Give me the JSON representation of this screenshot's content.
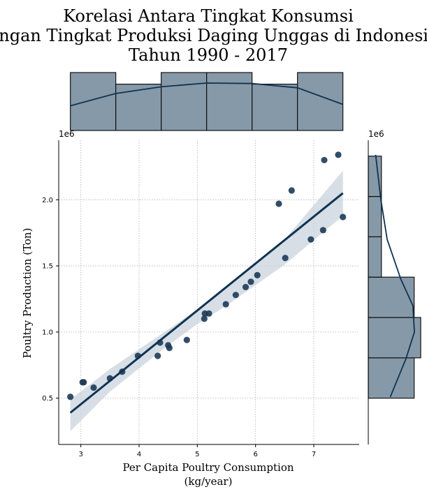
{
  "chart_data": {
    "type": "scatter",
    "title_lines": [
      "Korelasi Antara Tingkat Konsumsi",
      "dengan Tingkat Produksi Daging Unggas di Indonesia",
      "Tahun 1990 - 2017"
    ],
    "xlabel_lines": [
      "Per Capita Poultry Consumption",
      "(kg/year)"
    ],
    "ylabel": "Poultry Production (Ton)",
    "y_offset_text": "1e6",
    "marginal_offset_text": "1e6",
    "x_ticks": [
      3,
      4,
      5,
      6,
      7
    ],
    "x_tick_labels": [
      "3",
      "4",
      "5",
      "6",
      "7"
    ],
    "y_ticks": [
      0.5,
      1.0,
      1.5,
      2.0
    ],
    "y_tick_labels": [
      "0.5",
      "1.0",
      "1.5",
      "2.0"
    ],
    "xlim": [
      2.62,
      7.78
    ],
    "ylim": [
      0.15,
      2.45
    ],
    "grid": true,
    "colors": {
      "point": "#1d3a57",
      "regression_line": "#0f3352",
      "confidence_band": "#c9d3de",
      "histogram_fill": "#8699a8",
      "histogram_edge": "#111111",
      "kde": "#0f3352"
    },
    "points": [
      {
        "x": 2.82,
        "y": 0.51
      },
      {
        "x": 3.03,
        "y": 0.62
      },
      {
        "x": 3.05,
        "y": 0.62
      },
      {
        "x": 3.22,
        "y": 0.58
      },
      {
        "x": 3.5,
        "y": 0.65
      },
      {
        "x": 3.71,
        "y": 0.7
      },
      {
        "x": 3.98,
        "y": 0.82
      },
      {
        "x": 4.32,
        "y": 0.82
      },
      {
        "x": 4.36,
        "y": 0.92
      },
      {
        "x": 4.5,
        "y": 0.9
      },
      {
        "x": 4.52,
        "y": 0.88
      },
      {
        "x": 4.82,
        "y": 0.94
      },
      {
        "x": 5.12,
        "y": 1.1
      },
      {
        "x": 5.13,
        "y": 1.14
      },
      {
        "x": 5.2,
        "y": 1.14
      },
      {
        "x": 5.49,
        "y": 1.21
      },
      {
        "x": 5.66,
        "y": 1.28
      },
      {
        "x": 5.83,
        "y": 1.34
      },
      {
        "x": 5.92,
        "y": 1.38
      },
      {
        "x": 6.03,
        "y": 1.43
      },
      {
        "x": 6.4,
        "y": 1.97
      },
      {
        "x": 6.51,
        "y": 1.56
      },
      {
        "x": 6.62,
        "y": 2.07
      },
      {
        "x": 6.95,
        "y": 1.7
      },
      {
        "x": 7.16,
        "y": 1.77
      },
      {
        "x": 7.18,
        "y": 2.3
      },
      {
        "x": 7.42,
        "y": 2.34
      },
      {
        "x": 7.5,
        "y": 1.87
      }
    ],
    "regression": {
      "x1": 2.82,
      "y1": 0.39,
      "x2": 7.5,
      "y2": 2.05
    },
    "confidence_band": {
      "x": [
        2.82,
        3.5,
        4.5,
        5.0,
        5.5,
        6.5,
        7.5
      ],
      "upper": [
        0.49,
        0.72,
        1.02,
        1.17,
        1.33,
        1.7,
        2.22
      ],
      "lower": [
        0.25,
        0.55,
        0.9,
        1.06,
        1.2,
        1.51,
        1.88
      ]
    },
    "x_histogram": {
      "bin_edges": [
        2.82,
        3.6,
        4.38,
        5.16,
        5.94,
        6.72,
        7.5
      ],
      "counts": [
        5,
        4,
        5,
        5,
        4,
        5
      ],
      "kde_y_fraction": [
        0.52,
        0.78,
        0.92,
        1.0,
        0.99,
        0.9,
        0.55
      ]
    },
    "y_histogram": {
      "bin_edges": [
        0.5,
        0.805,
        1.11,
        1.415,
        1.72,
        2.025,
        2.33
      ],
      "counts": [
        7,
        8,
        7,
        2,
        2,
        2
      ],
      "kde_points": [
        {
          "y": 0.51,
          "f": 0.42
        },
        {
          "y": 0.8,
          "f": 0.72
        },
        {
          "y": 1.0,
          "f": 0.88
        },
        {
          "y": 1.2,
          "f": 0.85
        },
        {
          "y": 1.4,
          "f": 0.62
        },
        {
          "y": 1.7,
          "f": 0.36
        },
        {
          "y": 2.0,
          "f": 0.24
        },
        {
          "y": 2.34,
          "f": 0.14
        }
      ]
    }
  }
}
